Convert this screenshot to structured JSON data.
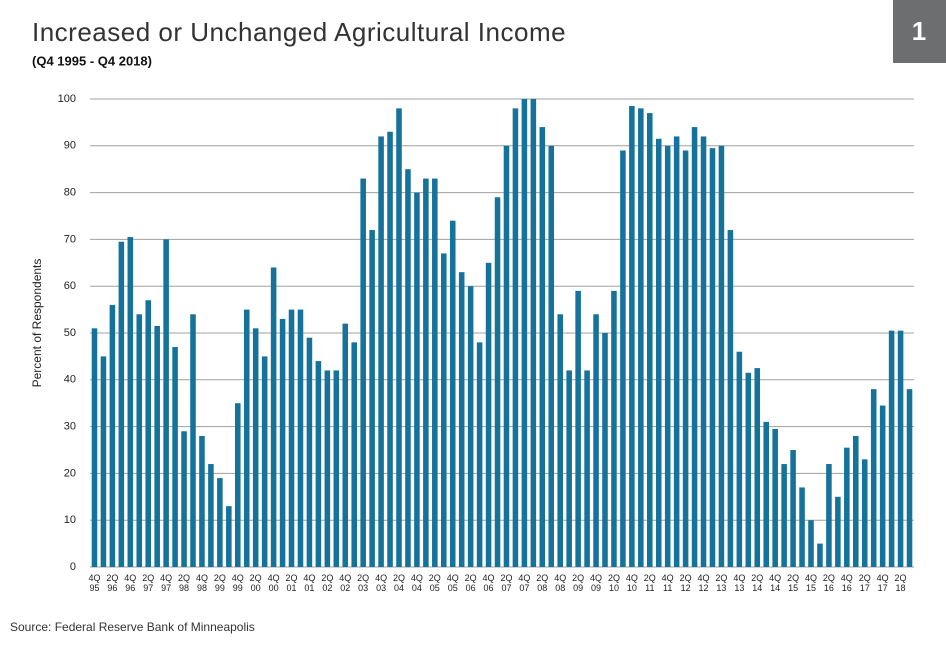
{
  "badge": "1",
  "source": "Source: Federal Reserve Bank of Minneapolis",
  "chart_data": {
    "type": "bar",
    "title": "Increased or Unchanged Agricultural Income",
    "subtitle": "(Q4 1995 - Q4 2018)",
    "y_label": "Percent of Respondents",
    "color": "#15729b",
    "grid": true,
    "ylim": [
      0,
      100
    ],
    "yticks": [
      0,
      10,
      20,
      30,
      40,
      50,
      60,
      70,
      80,
      90,
      100
    ],
    "categories": [
      "4Q 95",
      null,
      "2Q 96",
      null,
      "4Q 96",
      null,
      "2Q 97",
      null,
      "4Q 97",
      null,
      "2Q 98",
      null,
      "4Q 98",
      null,
      "2Q 99",
      null,
      "4Q 99",
      null,
      "2Q 00",
      null,
      "4Q 00",
      null,
      "2Q 01",
      null,
      "4Q 01",
      null,
      "2Q 02",
      null,
      "4Q 02",
      null,
      "2Q 03",
      null,
      "4Q 03",
      null,
      "2Q 04",
      null,
      "4Q 04",
      null,
      "2Q 05",
      null,
      "4Q 05",
      null,
      "2Q 06",
      null,
      "4Q 06",
      null,
      "2Q 07",
      null,
      "4Q 07",
      null,
      "2Q 08",
      null,
      "4Q 08",
      null,
      "2Q 09",
      null,
      "4Q 09",
      null,
      "2Q 10",
      null,
      "4Q 10",
      null,
      "2Q 11",
      null,
      "4Q 11",
      null,
      "2Q 12",
      null,
      "4Q 12",
      null,
      "2Q 13",
      null,
      "4Q 13",
      null,
      "2Q 14",
      null,
      "4Q 14",
      null,
      "2Q 15",
      null,
      "4Q 15",
      null,
      "2Q 16",
      null,
      "4Q 16",
      null,
      "2Q 17",
      null,
      "4Q 17",
      null,
      "2Q 18",
      null
    ],
    "values": [
      51,
      45,
      56,
      69.5,
      70.5,
      54,
      57,
      51.5,
      70,
      47,
      29,
      54,
      28,
      22,
      19,
      13,
      35,
      55,
      51,
      45,
      64,
      53,
      55,
      55,
      49,
      44,
      42,
      42,
      52,
      48,
      83,
      72,
      92,
      93,
      98,
      85,
      80,
      83,
      83,
      67,
      74,
      63,
      60,
      48,
      65,
      79,
      90,
      98,
      100,
      100,
      94,
      90,
      54,
      42,
      59,
      42,
      54,
      50,
      59,
      89,
      98.5,
      98,
      97,
      91.5,
      90,
      92,
      89,
      94,
      92,
      89.5,
      90,
      72,
      46,
      41.5,
      42.5,
      31,
      29.5,
      22,
      25,
      17,
      10,
      5,
      22,
      15,
      25.5,
      28,
      23,
      38,
      34.5,
      50.5,
      50.5,
      38
    ]
  }
}
